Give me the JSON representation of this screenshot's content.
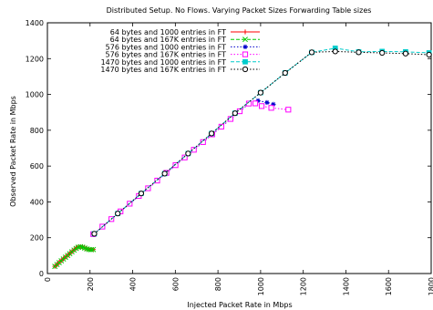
{
  "chart_data": {
    "type": "line",
    "title": "Distributed Setup. No Flows. Varying Packet Sizes  Forwarding Table sizes",
    "xlabel": "Injected Packet Rate in Mbps",
    "ylabel": "Observed Packet Rate in Mbps",
    "xlim": [
      0,
      1800
    ],
    "ylim": [
      0,
      1400
    ],
    "xticks": [
      0,
      200,
      400,
      600,
      800,
      1000,
      1200,
      1400,
      1600,
      1800
    ],
    "yticks": [
      0,
      200,
      400,
      600,
      800,
      1000,
      1200,
      1400
    ],
    "xtick_labels": [
      "0",
      "200",
      "400",
      "600",
      "800",
      "1000",
      "1200",
      "1400",
      "1600",
      "1800"
    ],
    "ytick_labels": [
      "0",
      "200",
      "400",
      "600",
      "800",
      "1000",
      "1200",
      "1400"
    ],
    "x_tick_rotation": "vertical",
    "legend_position": "top-left",
    "grid": false,
    "series": [
      {
        "name": "64 bytes and 1000 entries in FT",
        "color": "#ff0000",
        "marker": "plus",
        "dash": "solid",
        "points": [
          [
            35,
            40
          ],
          [
            45,
            50
          ],
          [
            55,
            62
          ],
          [
            65,
            72
          ],
          [
            75,
            82
          ],
          [
            85,
            92
          ],
          [
            95,
            102
          ],
          [
            105,
            112
          ],
          [
            115,
            122
          ],
          [
            125,
            132
          ],
          [
            135,
            142
          ],
          [
            145,
            148
          ],
          [
            155,
            150
          ],
          [
            165,
            148
          ],
          [
            175,
            143
          ],
          [
            185,
            138
          ],
          [
            195,
            135
          ],
          [
            205,
            133
          ],
          [
            215,
            134
          ]
        ]
      },
      {
        "name": "64 bytes and 167K entries in FT",
        "color": "#00cc00",
        "marker": "cross",
        "dash": "dashed",
        "points": [
          [
            35,
            40
          ],
          [
            45,
            50
          ],
          [
            55,
            61
          ],
          [
            65,
            71
          ],
          [
            75,
            81
          ],
          [
            85,
            91
          ],
          [
            95,
            101
          ],
          [
            105,
            111
          ],
          [
            115,
            121
          ],
          [
            125,
            131
          ],
          [
            135,
            140
          ],
          [
            145,
            147
          ],
          [
            155,
            150
          ],
          [
            165,
            147
          ],
          [
            175,
            142
          ],
          [
            185,
            137
          ],
          [
            195,
            134
          ],
          [
            205,
            133
          ],
          [
            215,
            134
          ]
        ]
      },
      {
        "name": "576 bytes and 1000 entries in FT",
        "color": "#0000cc",
        "marker": "star",
        "dash": "dotted",
        "points": [
          [
            215,
            218
          ],
          [
            258,
            261
          ],
          [
            300,
            303
          ],
          [
            343,
            346
          ],
          [
            386,
            389
          ],
          [
            429,
            432
          ],
          [
            472,
            475
          ],
          [
            515,
            518
          ],
          [
            558,
            561
          ],
          [
            601,
            604
          ],
          [
            644,
            647
          ],
          [
            687,
            690
          ],
          [
            730,
            733
          ],
          [
            773,
            776
          ],
          [
            816,
            819
          ],
          [
            859,
            862
          ],
          [
            902,
            905
          ],
          [
            945,
            948
          ],
          [
            988,
            965
          ],
          [
            1030,
            955
          ],
          [
            1060,
            945
          ]
        ]
      },
      {
        "name": "576 bytes and 167K entries in FT",
        "color": "#ff00ff",
        "marker": "open-square",
        "dash": "dotted",
        "points": [
          [
            215,
            220
          ],
          [
            258,
            262
          ],
          [
            300,
            304
          ],
          [
            343,
            347
          ],
          [
            386,
            390
          ],
          [
            429,
            433
          ],
          [
            472,
            476
          ],
          [
            515,
            519
          ],
          [
            558,
            562
          ],
          [
            601,
            605
          ],
          [
            644,
            648
          ],
          [
            687,
            691
          ],
          [
            730,
            734
          ],
          [
            773,
            777
          ],
          [
            816,
            820
          ],
          [
            859,
            863
          ],
          [
            902,
            906
          ],
          [
            945,
            949
          ],
          [
            975,
            950
          ],
          [
            1005,
            935
          ],
          [
            1050,
            925
          ],
          [
            1130,
            915
          ]
        ]
      },
      {
        "name": "1470 bytes and 1000 entries in FT",
        "color": "#00cccc",
        "marker": "filled-square",
        "dash": "dashed",
        "points": [
          [
            220,
            222
          ],
          [
            330,
            335
          ],
          [
            440,
            447
          ],
          [
            550,
            558
          ],
          [
            660,
            670
          ],
          [
            770,
            782
          ],
          [
            880,
            895
          ],
          [
            1000,
            1010
          ],
          [
            1115,
            1120
          ],
          [
            1240,
            1235
          ],
          [
            1350,
            1258
          ],
          [
            1460,
            1238
          ],
          [
            1570,
            1240
          ],
          [
            1680,
            1238
          ],
          [
            1790,
            1232
          ]
        ]
      },
      {
        "name": "1470 bytes and 167K entries in FT",
        "color": "#000000",
        "marker": "open-circle",
        "dash": "dotted",
        "points": [
          [
            220,
            222
          ],
          [
            330,
            335
          ],
          [
            440,
            447
          ],
          [
            550,
            558
          ],
          [
            660,
            670
          ],
          [
            770,
            782
          ],
          [
            880,
            895
          ],
          [
            1000,
            1010
          ],
          [
            1115,
            1120
          ],
          [
            1240,
            1235
          ],
          [
            1350,
            1240
          ],
          [
            1460,
            1235
          ],
          [
            1570,
            1232
          ],
          [
            1680,
            1228
          ],
          [
            1790,
            1222
          ]
        ]
      }
    ]
  }
}
